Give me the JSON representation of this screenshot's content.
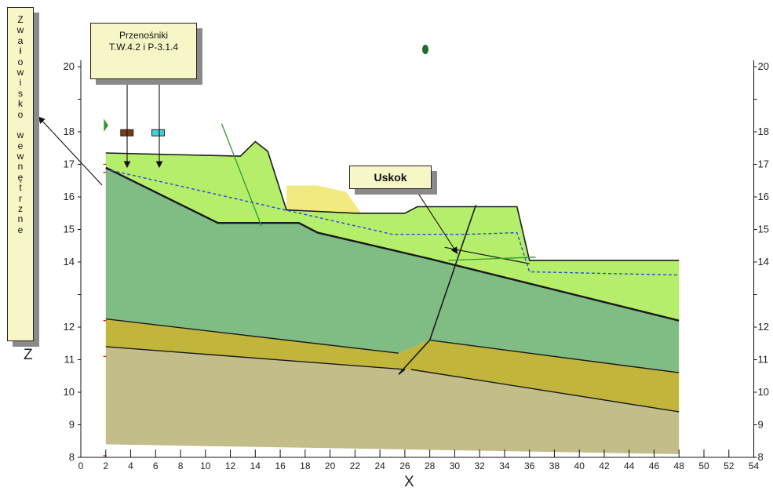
{
  "chart_data": {
    "type": "geological-cross-section",
    "xlabel": "X",
    "ylabel": "Z",
    "xlim": [
      0,
      54
    ],
    "ylim": [
      8,
      20
    ],
    "x_ticks": [
      "0",
      "2",
      "4",
      "6",
      "8",
      "10",
      "12",
      "14",
      "16",
      "18",
      "20",
      "22",
      "24",
      "26",
      "28",
      "30",
      "32",
      "34",
      "36",
      "38",
      "40",
      "42",
      "44",
      "46",
      "48",
      "50",
      "52",
      "54"
    ],
    "y_ticks": [
      "8",
      "9",
      "10",
      "11",
      "12",
      "13",
      "14",
      "15",
      "16",
      "17",
      "18",
      "19",
      "20"
    ],
    "layers": [
      {
        "id": "base-layer",
        "color": "#c3bd8a",
        "polygon": [
          [
            2,
            11.4
          ],
          [
            26,
            10.7
          ],
          [
            48,
            9.4
          ],
          [
            48,
            8.1
          ],
          [
            2,
            8.4
          ]
        ]
      },
      {
        "id": "olive-layer",
        "color": "#c2b53c",
        "polygon": [
          [
            2,
            12.25
          ],
          [
            25.5,
            11.2
          ],
          [
            28,
            11.6
          ],
          [
            48,
            10.6
          ],
          [
            48,
            9.4
          ],
          [
            26,
            10.7
          ],
          [
            2,
            11.4
          ]
        ]
      },
      {
        "id": "dark-green-layer",
        "color": "#7fbd85",
        "polygon": [
          [
            2,
            16.9
          ],
          [
            11,
            15.2
          ],
          [
            17.5,
            15.2
          ],
          [
            19,
            14.9
          ],
          [
            28,
            14.1
          ],
          [
            48,
            12.2
          ],
          [
            48,
            10.6
          ],
          [
            28,
            11.6
          ],
          [
            25.5,
            11.2
          ],
          [
            2,
            12.25
          ]
        ]
      },
      {
        "id": "light-green-layer",
        "color": "#b4ee6a",
        "polygon": [
          [
            2,
            17.35
          ],
          [
            12.8,
            17.25
          ],
          [
            14,
            17.7
          ],
          [
            15,
            17.4
          ],
          [
            16.5,
            15.6
          ],
          [
            22,
            15.5
          ],
          [
            26,
            15.5
          ],
          [
            27,
            15.7
          ],
          [
            35,
            15.7
          ],
          [
            36,
            14.05
          ],
          [
            48,
            14.05
          ],
          [
            48,
            12.2
          ],
          [
            28,
            14.1
          ],
          [
            19,
            14.9
          ],
          [
            17.5,
            15.2
          ],
          [
            11,
            15.2
          ],
          [
            2,
            16.9
          ]
        ]
      },
      {
        "id": "yellow-lens",
        "color": "#f1ea80",
        "polygon": [
          [
            16.5,
            16.35
          ],
          [
            19,
            16.35
          ],
          [
            21.3,
            16.15
          ],
          [
            22.5,
            15.5
          ],
          [
            16.5,
            15.6
          ]
        ]
      }
    ],
    "water_table": [
      [
        2,
        16.85
      ],
      [
        25,
        14.85
      ],
      [
        31,
        14.85
      ],
      [
        35,
        14.9
      ],
      [
        36,
        13.7
      ],
      [
        48,
        13.6
      ]
    ],
    "markers": [
      {
        "id": "conveyor-1",
        "x": 3.7,
        "color": "#7a3a10"
      },
      {
        "id": "conveyor-2",
        "x": 6.2,
        "color": "#3fd0d8"
      }
    ],
    "annotations": {
      "vertical_callout": [
        "Z",
        "w",
        "a",
        "ł",
        "o",
        "w",
        "i",
        "s",
        "k",
        "o",
        "",
        "w",
        "e",
        "w",
        "n",
        "ę",
        "t",
        "r",
        "z",
        "n",
        "e"
      ],
      "conveyor_callout_line1": "Przenośniki",
      "conveyor_callout_line2": "T.W.4.2 i P-3.1.4",
      "fault_callout": "Uskok"
    }
  }
}
